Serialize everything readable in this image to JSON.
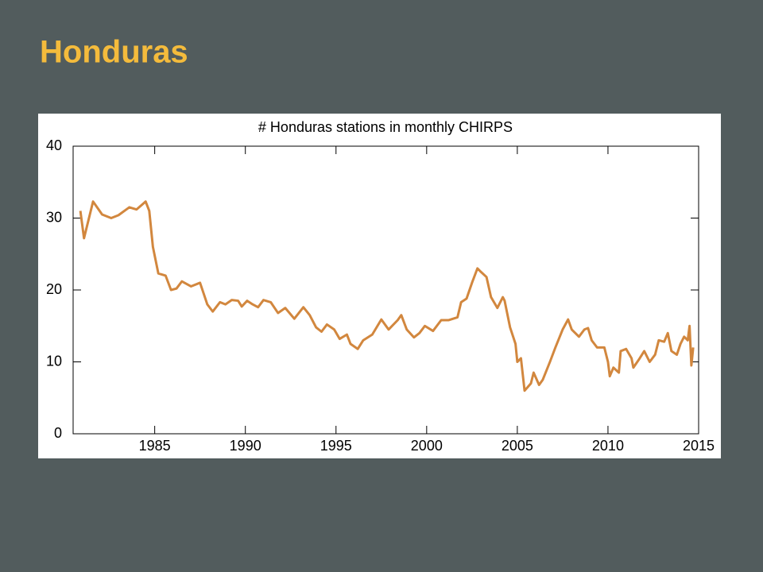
{
  "slide_title": "Honduras",
  "chart_data": {
    "type": "line",
    "title": "# Honduras stations in monthly CHIRPS",
    "x": [
      1980.9,
      1981.1,
      1981.6,
      1982.1,
      1982.6,
      1983.0,
      1983.6,
      1984.0,
      1984.5,
      1984.7,
      1984.9,
      1985.2,
      1985.6,
      1985.9,
      1986.2,
      1986.5,
      1987.0,
      1987.5,
      1987.9,
      1988.2,
      1988.6,
      1988.9,
      1989.25,
      1989.6,
      1989.8,
      1990.1,
      1990.4,
      1990.7,
      1991.0,
      1991.4,
      1991.8,
      1992.2,
      1992.7,
      1993.2,
      1993.55,
      1993.9,
      1994.2,
      1994.5,
      1994.9,
      1995.2,
      1995.6,
      1995.8,
      1996.2,
      1996.5,
      1997.0,
      1997.5,
      1997.9,
      1998.4,
      1998.6,
      1998.9,
      1999.3,
      1999.6,
      1999.9,
      2000.35,
      2000.8,
      2001.2,
      2001.7,
      2001.9,
      2002.2,
      2002.5,
      2002.8,
      2003.0,
      2003.3,
      2003.55,
      2003.9,
      2004.2,
      2004.3,
      2004.6,
      2004.9,
      2005.0,
      2005.2,
      2005.4,
      2005.75,
      2005.9,
      2006.2,
      2006.4,
      2006.8,
      2007.1,
      2007.5,
      2007.8,
      2008.0,
      2008.4,
      2008.7,
      2008.9,
      2009.1,
      2009.4,
      2009.8,
      2010.0,
      2010.1,
      2010.3,
      2010.6,
      2010.7,
      2011.0,
      2011.3,
      2011.4,
      2011.7,
      2012.0,
      2012.3,
      2012.6,
      2012.8,
      2013.1,
      2013.3,
      2013.5,
      2013.8,
      2014.0,
      2014.2,
      2014.4,
      2014.5,
      2014.6,
      2014.7
    ],
    "series": [
      {
        "name": "# Honduras stations",
        "color": "#d2873e",
        "values": [
          31,
          27.2,
          32.3,
          30.5,
          30,
          30.4,
          31.5,
          31.2,
          32.3,
          31,
          26,
          22.3,
          22,
          20,
          20.2,
          21.2,
          20.5,
          21,
          18,
          17,
          18.3,
          18,
          18.6,
          18.5,
          17.7,
          18.5,
          18,
          17.6,
          18.6,
          18.3,
          16.8,
          17.5,
          16,
          17.6,
          16.5,
          14.8,
          14.2,
          15.2,
          14.5,
          13.2,
          13.8,
          12.5,
          11.8,
          13,
          13.8,
          15.9,
          14.5,
          15.8,
          16.5,
          14.5,
          13.4,
          14,
          15,
          14.3,
          15.8,
          15.8,
          16.2,
          18.3,
          18.8,
          21,
          23,
          22.5,
          21.8,
          19,
          17.5,
          19,
          18.5,
          14.8,
          12.5,
          10,
          10.5,
          6,
          7,
          8.5,
          6.8,
          7.5,
          10,
          12,
          14.5,
          15.9,
          14.5,
          13.5,
          14.5,
          14.7,
          13,
          12,
          12,
          10,
          8,
          9.2,
          8.5,
          11.5,
          11.8,
          10.5,
          9.2,
          10.3,
          11.5,
          10,
          11,
          13,
          12.8,
          14,
          11.5,
          11,
          12.5,
          13.5,
          13,
          15,
          9.5,
          12
        ]
      }
    ],
    "xlim": [
      1980.5,
      2015
    ],
    "xticks": [
      1985,
      1990,
      1995,
      2000,
      2005,
      2010,
      2015
    ],
    "ylim": [
      0,
      40
    ],
    "yticks": [
      0,
      10,
      20,
      30,
      40
    ]
  }
}
